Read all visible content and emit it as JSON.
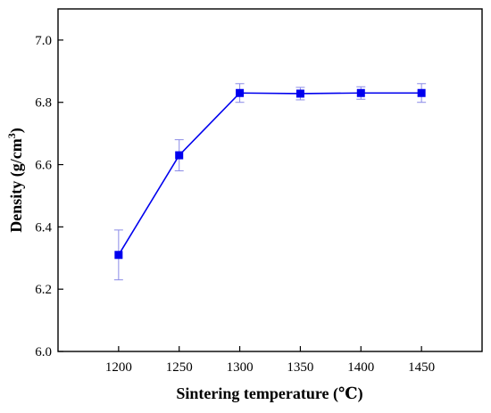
{
  "chart_data": {
    "type": "line",
    "title": "",
    "xlabel": "Sintering temperature (℃)",
    "ylabel_main": "Density (g/cm",
    "ylabel_sup": "3",
    "ylabel_end": ")",
    "xlim": [
      1150,
      1500
    ],
    "ylim": [
      6.0,
      7.1
    ],
    "xticks": [
      1200,
      1250,
      1300,
      1350,
      1400,
      1450
    ],
    "yticks": [
      6.0,
      6.2,
      6.4,
      6.6,
      6.8,
      7.0
    ],
    "ytick_decimals": 1,
    "grid": false,
    "series_color": "#0000ee",
    "errorbar_color": "#8a8ae6",
    "series": [
      {
        "x": [
          1200,
          1250,
          1300,
          1350,
          1400,
          1450
        ],
        "values": [
          6.31,
          6.63,
          6.83,
          6.828,
          6.83,
          6.83
        ],
        "errors": [
          0.08,
          0.05,
          0.03,
          0.02,
          0.02,
          0.03
        ],
        "marker": "square"
      }
    ]
  }
}
